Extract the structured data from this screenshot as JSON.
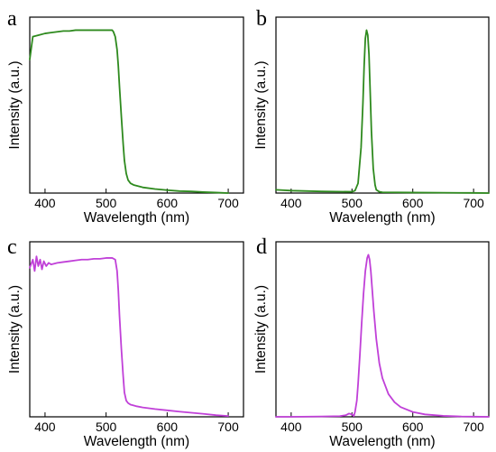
{
  "chart_data": [
    {
      "panel": "a",
      "type": "line",
      "xlabel": "Wavelength (nm)",
      "ylabel": "Intensity (a.u.)",
      "xlim": [
        375,
        725
      ],
      "ylim": [
        0,
        1.08
      ],
      "xticks": [
        400,
        500,
        600,
        700
      ],
      "color": "#2e8a1e",
      "series": [
        {
          "x": [
            375,
            380,
            390,
            400,
            410,
            420,
            430,
            440,
            450,
            460,
            470,
            480,
            490,
            500,
            505,
            510,
            512,
            515,
            518,
            520,
            522,
            525,
            528,
            530,
            533,
            536,
            540,
            545,
            550,
            560,
            580,
            600,
            620,
            640,
            660,
            680,
            700
          ],
          "y": [
            0.82,
            0.96,
            0.97,
            0.98,
            0.985,
            0.99,
            0.995,
            0.995,
            1.0,
            1.0,
            1.0,
            1.0,
            1.0,
            1.0,
            1.0,
            1.0,
            0.99,
            0.96,
            0.88,
            0.78,
            0.65,
            0.47,
            0.3,
            0.2,
            0.12,
            0.08,
            0.06,
            0.05,
            0.045,
            0.035,
            0.025,
            0.018,
            0.012,
            0.01,
            0.006,
            0.003,
            0.0
          ]
        }
      ]
    },
    {
      "panel": "b",
      "type": "line",
      "xlabel": "Wavelength (nm)",
      "ylabel": "Intensity (a.u.)",
      "xlim": [
        375,
        725
      ],
      "ylim": [
        0,
        1.08
      ],
      "xticks": [
        400,
        500,
        600,
        700
      ],
      "color": "#2e8a1e",
      "series": [
        {
          "x": [
            375,
            400,
            450,
            500,
            505,
            510,
            515,
            518,
            520,
            522,
            524,
            526,
            528,
            530,
            532,
            535,
            538,
            540,
            545,
            550,
            600,
            650,
            700,
            725
          ],
          "y": [
            0.02,
            0.015,
            0.01,
            0.008,
            0.015,
            0.06,
            0.28,
            0.55,
            0.78,
            0.95,
            1.0,
            0.97,
            0.85,
            0.62,
            0.38,
            0.15,
            0.05,
            0.02,
            0.008,
            0.005,
            0.003,
            0.002,
            0.001,
            0.0
          ]
        }
      ]
    },
    {
      "panel": "c",
      "type": "line",
      "xlabel": "Wavelength (nm)",
      "ylabel": "Intensity (a.u.)",
      "xlim": [
        375,
        725
      ],
      "ylim": [
        0,
        1.08
      ],
      "xticks": [
        400,
        500,
        600,
        700
      ],
      "color": "#c040d8",
      "series": [
        {
          "x": [
            375,
            380,
            383,
            386,
            389,
            392,
            395,
            398,
            402,
            406,
            410,
            420,
            430,
            440,
            450,
            460,
            470,
            480,
            490,
            500,
            510,
            515,
            518,
            520,
            522,
            525,
            528,
            530,
            533,
            536,
            540,
            545,
            550,
            560,
            580,
            600,
            620,
            640,
            660,
            680,
            700
          ],
          "y": [
            0.92,
            0.97,
            0.9,
            0.99,
            0.93,
            0.97,
            0.91,
            0.96,
            0.93,
            0.95,
            0.94,
            0.95,
            0.955,
            0.96,
            0.965,
            0.97,
            0.97,
            0.975,
            0.975,
            0.98,
            0.98,
            0.97,
            0.9,
            0.78,
            0.62,
            0.42,
            0.25,
            0.15,
            0.1,
            0.085,
            0.075,
            0.07,
            0.065,
            0.058,
            0.048,
            0.04,
            0.032,
            0.025,
            0.018,
            0.01,
            0.005
          ]
        }
      ]
    },
    {
      "panel": "d",
      "type": "line",
      "xlabel": "Wavelength (nm)",
      "ylabel": "Intensity (a.u.)",
      "xlim": [
        375,
        725
      ],
      "ylim": [
        0,
        1.08
      ],
      "xticks": [
        400,
        500,
        600,
        700
      ],
      "color": "#c040d8",
      "series": [
        {
          "x": [
            375,
            400,
            450,
            480,
            490,
            495,
            500,
            503,
            505,
            508,
            510,
            513,
            516,
            519,
            522,
            525,
            527,
            529,
            531,
            533,
            536,
            540,
            545,
            550,
            560,
            570,
            580,
            600,
            620,
            650,
            680,
            700,
            725
          ],
          "y": [
            0.0,
            0.0,
            0.002,
            0.004,
            0.01,
            0.02,
            0.015,
            0.005,
            0.03,
            0.1,
            0.2,
            0.38,
            0.58,
            0.76,
            0.9,
            0.98,
            1.0,
            0.97,
            0.9,
            0.8,
            0.65,
            0.48,
            0.33,
            0.24,
            0.14,
            0.09,
            0.06,
            0.03,
            0.015,
            0.006,
            0.002,
            0.001,
            0.0
          ]
        }
      ]
    }
  ]
}
